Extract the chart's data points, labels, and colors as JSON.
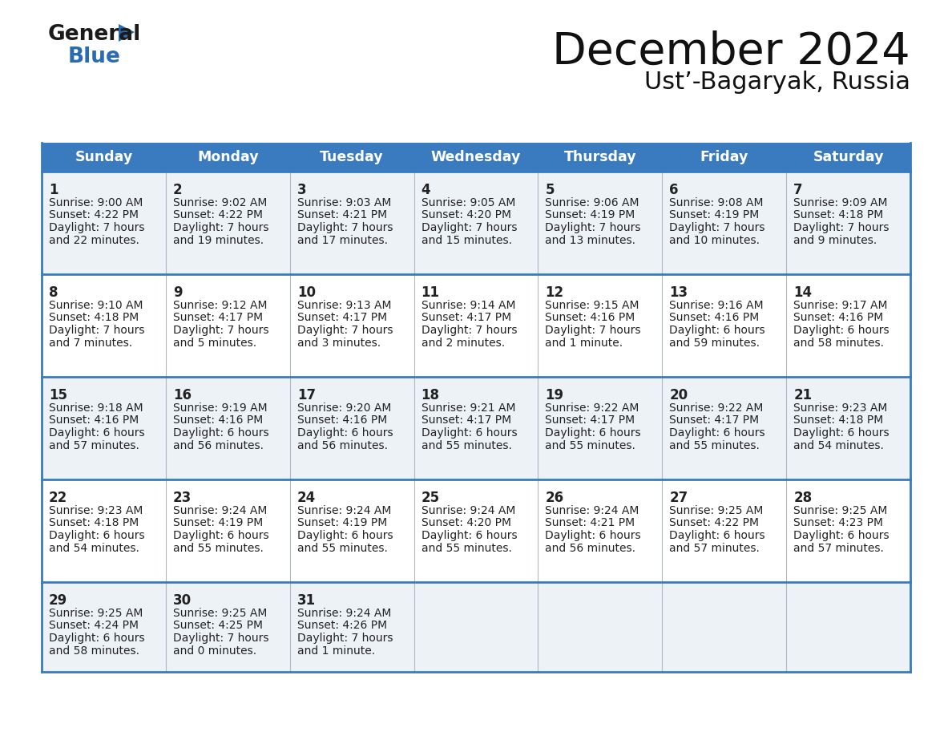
{
  "title": "December 2024",
  "subtitle": "Ust’-Bagaryak, Russia",
  "days_of_week": [
    "Sunday",
    "Monday",
    "Tuesday",
    "Wednesday",
    "Thursday",
    "Friday",
    "Saturday"
  ],
  "header_bg": "#3a7abf",
  "header_text": "#ffffff",
  "row_bg_odd": "#edf2f7",
  "row_bg_even": "#ffffff",
  "border_color": "#3a7abf",
  "text_color": "#222222",
  "calendar": [
    [
      {
        "day": 1,
        "sunrise": "9:00 AM",
        "sunset": "4:22 PM",
        "daylight": "7 hours",
        "daylight2": "and 22 minutes."
      },
      {
        "day": 2,
        "sunrise": "9:02 AM",
        "sunset": "4:22 PM",
        "daylight": "7 hours",
        "daylight2": "and 19 minutes."
      },
      {
        "day": 3,
        "sunrise": "9:03 AM",
        "sunset": "4:21 PM",
        "daylight": "7 hours",
        "daylight2": "and 17 minutes."
      },
      {
        "day": 4,
        "sunrise": "9:05 AM",
        "sunset": "4:20 PM",
        "daylight": "7 hours",
        "daylight2": "and 15 minutes."
      },
      {
        "day": 5,
        "sunrise": "9:06 AM",
        "sunset": "4:19 PM",
        "daylight": "7 hours",
        "daylight2": "and 13 minutes."
      },
      {
        "day": 6,
        "sunrise": "9:08 AM",
        "sunset": "4:19 PM",
        "daylight": "7 hours",
        "daylight2": "and 10 minutes."
      },
      {
        "day": 7,
        "sunrise": "9:09 AM",
        "sunset": "4:18 PM",
        "daylight": "7 hours",
        "daylight2": "and 9 minutes."
      }
    ],
    [
      {
        "day": 8,
        "sunrise": "9:10 AM",
        "sunset": "4:18 PM",
        "daylight": "7 hours",
        "daylight2": "and 7 minutes."
      },
      {
        "day": 9,
        "sunrise": "9:12 AM",
        "sunset": "4:17 PM",
        "daylight": "7 hours",
        "daylight2": "and 5 minutes."
      },
      {
        "day": 10,
        "sunrise": "9:13 AM",
        "sunset": "4:17 PM",
        "daylight": "7 hours",
        "daylight2": "and 3 minutes."
      },
      {
        "day": 11,
        "sunrise": "9:14 AM",
        "sunset": "4:17 PM",
        "daylight": "7 hours",
        "daylight2": "and 2 minutes."
      },
      {
        "day": 12,
        "sunrise": "9:15 AM",
        "sunset": "4:16 PM",
        "daylight": "7 hours",
        "daylight2": "and 1 minute."
      },
      {
        "day": 13,
        "sunrise": "9:16 AM",
        "sunset": "4:16 PM",
        "daylight": "6 hours",
        "daylight2": "and 59 minutes."
      },
      {
        "day": 14,
        "sunrise": "9:17 AM",
        "sunset": "4:16 PM",
        "daylight": "6 hours",
        "daylight2": "and 58 minutes."
      }
    ],
    [
      {
        "day": 15,
        "sunrise": "9:18 AM",
        "sunset": "4:16 PM",
        "daylight": "6 hours",
        "daylight2": "and 57 minutes."
      },
      {
        "day": 16,
        "sunrise": "9:19 AM",
        "sunset": "4:16 PM",
        "daylight": "6 hours",
        "daylight2": "and 56 minutes."
      },
      {
        "day": 17,
        "sunrise": "9:20 AM",
        "sunset": "4:16 PM",
        "daylight": "6 hours",
        "daylight2": "and 56 minutes."
      },
      {
        "day": 18,
        "sunrise": "9:21 AM",
        "sunset": "4:17 PM",
        "daylight": "6 hours",
        "daylight2": "and 55 minutes."
      },
      {
        "day": 19,
        "sunrise": "9:22 AM",
        "sunset": "4:17 PM",
        "daylight": "6 hours",
        "daylight2": "and 55 minutes."
      },
      {
        "day": 20,
        "sunrise": "9:22 AM",
        "sunset": "4:17 PM",
        "daylight": "6 hours",
        "daylight2": "and 55 minutes."
      },
      {
        "day": 21,
        "sunrise": "9:23 AM",
        "sunset": "4:18 PM",
        "daylight": "6 hours",
        "daylight2": "and 54 minutes."
      }
    ],
    [
      {
        "day": 22,
        "sunrise": "9:23 AM",
        "sunset": "4:18 PM",
        "daylight": "6 hours",
        "daylight2": "and 54 minutes."
      },
      {
        "day": 23,
        "sunrise": "9:24 AM",
        "sunset": "4:19 PM",
        "daylight": "6 hours",
        "daylight2": "and 55 minutes."
      },
      {
        "day": 24,
        "sunrise": "9:24 AM",
        "sunset": "4:19 PM",
        "daylight": "6 hours",
        "daylight2": "and 55 minutes."
      },
      {
        "day": 25,
        "sunrise": "9:24 AM",
        "sunset": "4:20 PM",
        "daylight": "6 hours",
        "daylight2": "and 55 minutes."
      },
      {
        "day": 26,
        "sunrise": "9:24 AM",
        "sunset": "4:21 PM",
        "daylight": "6 hours",
        "daylight2": "and 56 minutes."
      },
      {
        "day": 27,
        "sunrise": "9:25 AM",
        "sunset": "4:22 PM",
        "daylight": "6 hours",
        "daylight2": "and 57 minutes."
      },
      {
        "day": 28,
        "sunrise": "9:25 AM",
        "sunset": "4:23 PM",
        "daylight": "6 hours",
        "daylight2": "and 57 minutes."
      }
    ],
    [
      {
        "day": 29,
        "sunrise": "9:25 AM",
        "sunset": "4:24 PM",
        "daylight": "6 hours",
        "daylight2": "and 58 minutes."
      },
      {
        "day": 30,
        "sunrise": "9:25 AM",
        "sunset": "4:25 PM",
        "daylight": "7 hours",
        "daylight2": "and 0 minutes."
      },
      {
        "day": 31,
        "sunrise": "9:24 AM",
        "sunset": "4:26 PM",
        "daylight": "7 hours",
        "daylight2": "and 1 minute."
      },
      null,
      null,
      null,
      null
    ]
  ],
  "logo_color_general": "#1a1a1a",
  "logo_color_blue": "#2b6cb0",
  "logo_triangle_color": "#2b6cb0"
}
